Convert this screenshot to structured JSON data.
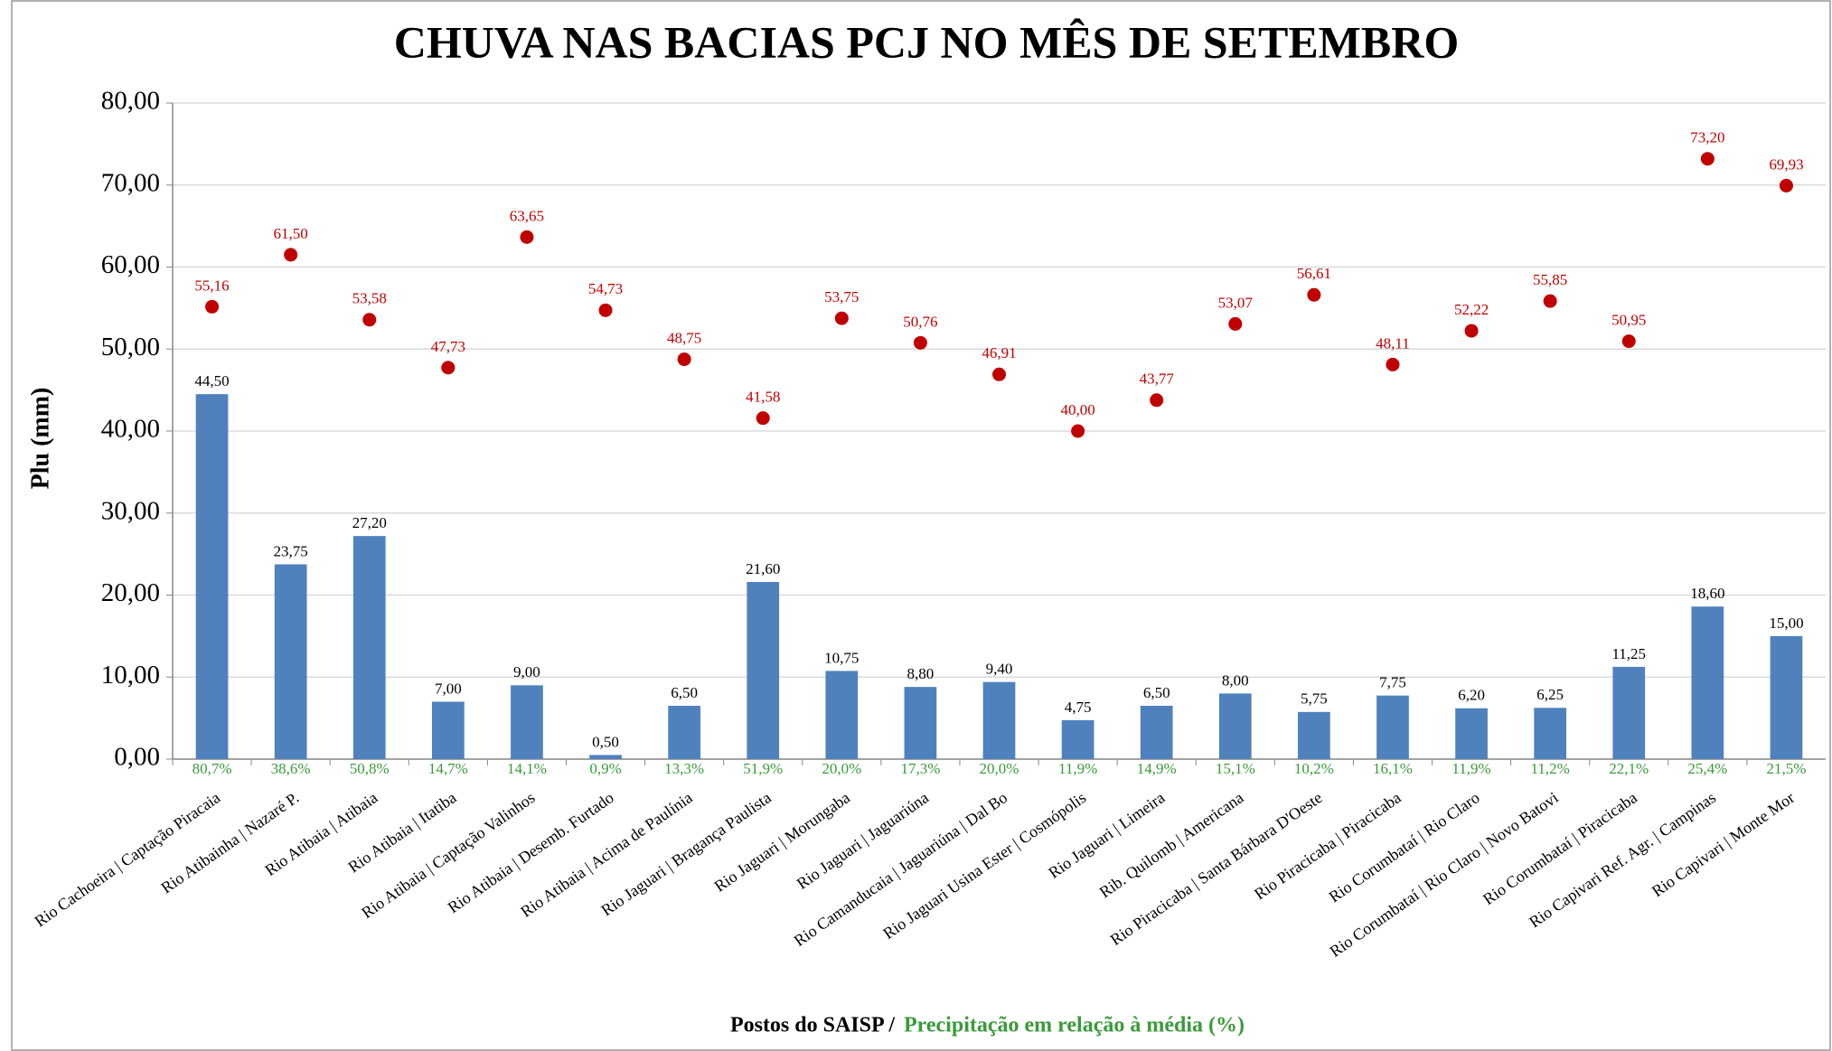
{
  "chart_data": {
    "type": "bar",
    "title": "CHUVA NAS BACIAS PCJ NO MÊS DE SETEMBRO",
    "y_label": "Plu (mm)",
    "x_label": "Postos do SAISP /",
    "x_label_note": "Precipitação em relação à média (%)",
    "categories": [
      "Rio Cachoeira | Captação Piracaia",
      "Rio Atibainha | Nazaré P.",
      "Rio Atibaia | Atibaia",
      "Rio Atibaia | Itatiba",
      "Rio Atibaia | Captação Valinhos",
      "Rio Atibaia | Desemb. Furtado",
      "Rio Atibaia | Acima de Paulínia",
      "Rio Jaguari | Bragança Paulista",
      "Rio Jaguari | Morungaba",
      "Rio Jaguari | Jaguariúna",
      "Rio Camanducaia | Jaguariúna | Dal Bo",
      "Rio Jaguari Usina Ester | Cosmópolis",
      "Rio Jaguari | Limeira",
      "Rib. Quilomb | Americana",
      "Rio Piracicaba | Santa Bárbara D'Oeste",
      "Rio Piracicaba | Piracicaba",
      "Rio Corumbataí | Rio Claro",
      "Rio Corumbataí | Rio Claro | Novo Batovi",
      "Rio Corumbataí | Piracicaba",
      "Rio Capivari Ref. Agr. | Campinas",
      "Rio Capivari | Monte Mor"
    ],
    "series": [
      {
        "type": "bar",
        "color": "#4f81bd",
        "values": [
          44.5,
          23.75,
          27.2,
          7.0,
          9.0,
          0.5,
          6.5,
          21.6,
          10.75,
          8.8,
          9.4,
          4.75,
          6.5,
          8.0,
          5.75,
          7.75,
          6.2,
          6.25,
          11.25,
          18.6,
          15.0
        ],
        "value_labels": [
          "44,50",
          "23,75",
          "27,20",
          "7,00",
          "9,00",
          "0,50",
          "6,50",
          "21,60",
          "10,75",
          "8,80",
          "9,40",
          "4,75",
          "6,50",
          "8,00",
          "5,75",
          "7,75",
          "6,20",
          "6,25",
          "11,25",
          "18,60",
          "15,00"
        ]
      },
      {
        "type": "scatter",
        "color": "#c00000",
        "values": [
          55.16,
          61.5,
          53.58,
          47.73,
          63.65,
          54.73,
          48.75,
          41.58,
          53.75,
          50.76,
          46.91,
          40.0,
          43.77,
          53.07,
          56.61,
          48.11,
          52.22,
          55.85,
          50.95,
          73.2,
          69.93
        ],
        "value_labels": [
          "55,16",
          "61,50",
          "53,58",
          "47,73",
          "63,65",
          "54,73",
          "48,75",
          "41,58",
          "53,75",
          "50,76",
          "46,91",
          "40,00",
          "43,77",
          "53,07",
          "56,61",
          "48,11",
          "52,22",
          "55,85",
          "50,95",
          "73,20",
          "69,93"
        ]
      }
    ],
    "percent_labels": [
      "80,7%",
      "38,6%",
      "50,8%",
      "14,7%",
      "14,1%",
      "0,9%",
      "13,3%",
      "51,9%",
      "20,0%",
      "17,3%",
      "20,0%",
      "11,9%",
      "14,9%",
      "15,1%",
      "10,2%",
      "16,1%",
      "11,9%",
      "11,2%",
      "22,1%",
      "25,4%",
      "21,5%"
    ],
    "percent_color": "#3a9a3a",
    "ylim": [
      0,
      80
    ],
    "yticks": [
      {
        "value": 0,
        "label": "0,00"
      },
      {
        "value": 10,
        "label": "10,00"
      },
      {
        "value": 20,
        "label": "20,00"
      },
      {
        "value": 30,
        "label": "30,00"
      },
      {
        "value": 40,
        "label": "40,00"
      },
      {
        "value": 50,
        "label": "50,00"
      },
      {
        "value": 60,
        "label": "60,00"
      },
      {
        "value": 70,
        "label": "70,00"
      },
      {
        "value": 80,
        "label": "80,00"
      }
    ],
    "grid": true
  }
}
